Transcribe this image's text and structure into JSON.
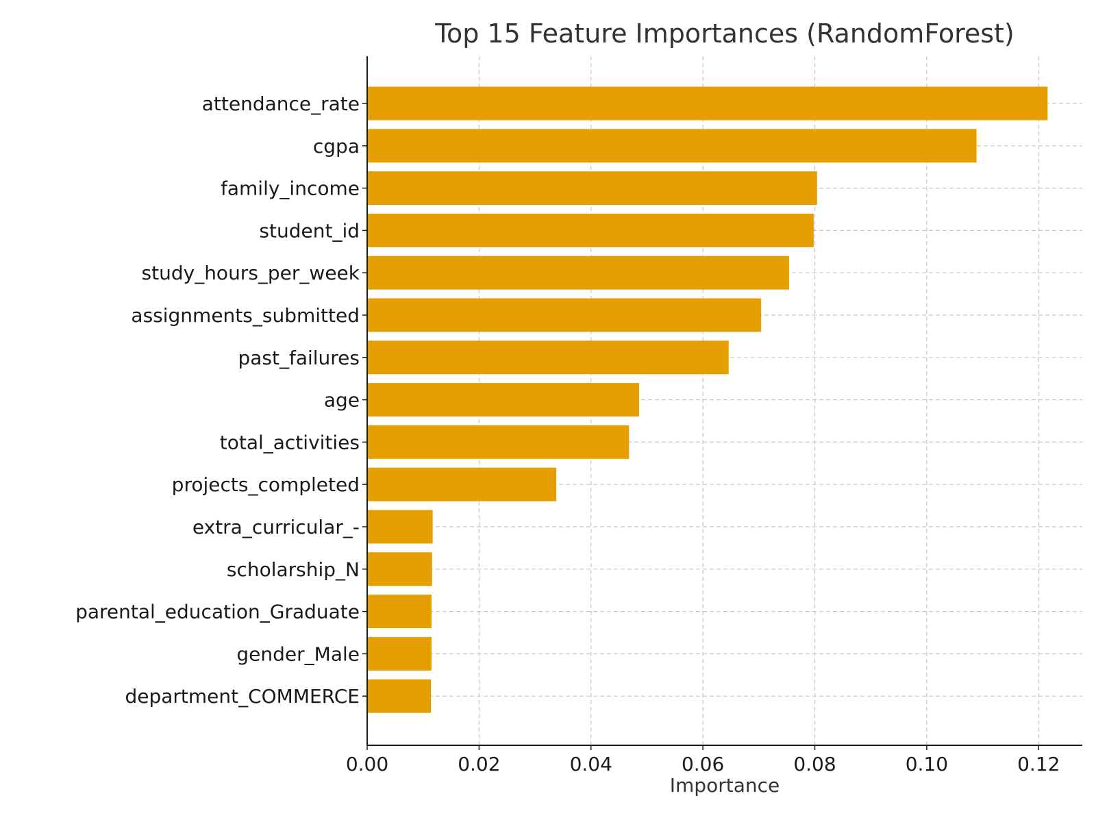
{
  "chart_data": {
    "type": "bar",
    "orientation": "horizontal",
    "title": "Top 15 Feature Importances (RandomForest)",
    "xlabel": "Importance",
    "ylabel": "",
    "xlim": [
      0,
      0.1278
    ],
    "xticks": [
      "0.00",
      "0.02",
      "0.04",
      "0.06",
      "0.08",
      "0.10",
      "0.12"
    ],
    "grid": true,
    "bar_color": "#E69F00",
    "categories": [
      "attendance_rate",
      "cgpa",
      "family_income",
      "student_id",
      "study_hours_per_week",
      "assignments_submitted",
      "past_failures",
      "age",
      "total_activities",
      "projects_completed",
      "extra_curricular_-",
      "scholarship_N",
      "parental_education_Graduate",
      "gender_Male",
      "department_COMMERCE"
    ],
    "values": [
      0.1216,
      0.1089,
      0.0804,
      0.0798,
      0.0754,
      0.0704,
      0.0646,
      0.0486,
      0.0468,
      0.0338,
      0.0117,
      0.0116,
      0.0115,
      0.0115,
      0.0114
    ]
  }
}
